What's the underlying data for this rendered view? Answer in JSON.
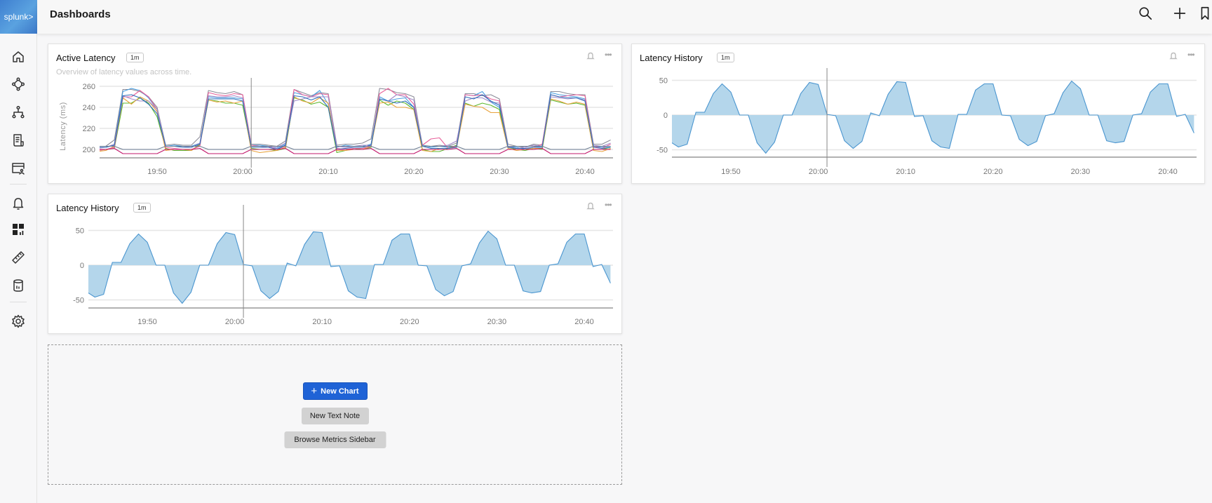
{
  "app": {
    "logo_text": "splunk>",
    "title": "Dashboards"
  },
  "sidebar": {
    "items": [
      {
        "icon": "home-icon"
      },
      {
        "icon": "service-map-icon"
      },
      {
        "icon": "hierarchy-icon"
      },
      {
        "icon": "logs-icon"
      },
      {
        "icon": "synthetics-icon"
      },
      {
        "icon": "alerts-bell-icon"
      },
      {
        "icon": "dashboards-icon"
      },
      {
        "icon": "ruler-icon"
      },
      {
        "icon": "database-icon"
      },
      {
        "icon": "settings-gear-icon"
      }
    ]
  },
  "header": {
    "icons": [
      "search-icon",
      "plus-icon",
      "bookmark-icon"
    ]
  },
  "cards": [
    {
      "title": "Active Latency",
      "badge": "1m",
      "subtitle": "Overview of latency values across time."
    },
    {
      "title": "Latency History",
      "badge": "1m"
    },
    {
      "title": "Latency History",
      "badge": "1m"
    }
  ],
  "empty_slot": {
    "new_chart": "New Chart",
    "new_text_note": "New Text Note",
    "browse_metrics": "Browse Metrics Sidebar"
  },
  "colors": {
    "accent": "#1f63d6",
    "area_fill": "#b4d6eb",
    "area_line": "#4a95cf"
  },
  "chart_data": [
    {
      "type": "line",
      "ylabel": "Latency (ms)",
      "yticks": [
        "200",
        "220",
        "240",
        "260"
      ],
      "xticks": [
        "19:50",
        "20:00",
        "20:10",
        "20:20",
        "20:30",
        "20:40"
      ],
      "ylim": [
        192,
        260
      ],
      "grid": true,
      "event_marker": "20:01",
      "x": [
        "19:43",
        "19:44",
        "19:45",
        "19:46",
        "19:47",
        "19:48",
        "19:49",
        "19:50",
        "19:51",
        "19:52",
        "19:53",
        "19:54",
        "19:55",
        "19:56",
        "19:57",
        "19:58",
        "19:59",
        "20:00",
        "20:01",
        "20:02",
        "20:03",
        "20:04",
        "20:05",
        "20:06",
        "20:07",
        "20:08",
        "20:09",
        "20:10",
        "20:11",
        "20:12",
        "20:13",
        "20:14",
        "20:15",
        "20:16",
        "20:17",
        "20:18",
        "20:19",
        "20:20",
        "20:21",
        "20:22",
        "20:23",
        "20:24",
        "20:25",
        "20:26",
        "20:27",
        "20:28",
        "20:29",
        "20:30",
        "20:31",
        "20:32",
        "20:33",
        "20:34",
        "20:35",
        "20:36",
        "20:37",
        "20:38",
        "20:39",
        "20:40",
        "20:41",
        "20:42",
        "20:43"
      ],
      "series": [
        {
          "color": "#8c8c99",
          "values": [
            203,
            203,
            209,
            257,
            257,
            255,
            250,
            240,
            204,
            205,
            204,
            204,
            212,
            256,
            254,
            253,
            255,
            252,
            205,
            205,
            204,
            203,
            208,
            257,
            254,
            251,
            254,
            253,
            204,
            205,
            205,
            206,
            210,
            258,
            257,
            254,
            253,
            250,
            204,
            203,
            204,
            203,
            206,
            253,
            253,
            251,
            252,
            248,
            205,
            203,
            202,
            205,
            204,
            255,
            255,
            253,
            252,
            252,
            205,
            205,
            209
          ]
        },
        {
          "color": "#4a9fe0",
          "values": [
            202,
            202,
            204,
            255,
            258,
            256,
            249,
            238,
            203,
            204,
            203,
            203,
            206,
            250,
            249,
            249,
            249,
            248,
            204,
            204,
            203,
            201,
            205,
            254,
            252,
            250,
            256,
            243,
            202,
            204,
            203,
            203,
            205,
            250,
            246,
            248,
            249,
            240,
            204,
            202,
            203,
            202,
            203,
            252,
            251,
            255,
            245,
            240,
            203,
            202,
            200,
            202,
            203,
            254,
            252,
            251,
            250,
            248,
            203,
            202,
            203
          ]
        },
        {
          "color": "#5cb82e",
          "values": [
            199,
            200,
            201,
            244,
            244,
            249,
            244,
            231,
            201,
            199,
            199,
            199,
            205,
            247,
            246,
            244,
            244,
            242,
            201,
            200,
            200,
            199,
            201,
            249,
            247,
            243,
            245,
            240,
            197,
            199,
            201,
            200,
            202,
            247,
            242,
            246,
            244,
            238,
            200,
            198,
            198,
            201,
            204,
            244,
            241,
            244,
            242,
            238,
            202,
            200,
            199,
            201,
            200,
            247,
            245,
            243,
            244,
            242,
            200,
            200,
            202
          ]
        },
        {
          "color": "#e8a33d",
          "values": [
            198,
            199,
            203,
            249,
            243,
            250,
            246,
            236,
            199,
            200,
            200,
            199,
            204,
            247,
            245,
            246,
            244,
            246,
            199,
            197,
            198,
            199,
            202,
            250,
            246,
            244,
            249,
            244,
            199,
            199,
            200,
            200,
            203,
            244,
            245,
            240,
            240,
            238,
            199,
            198,
            201,
            201,
            202,
            243,
            241,
            240,
            235,
            235,
            201,
            199,
            200,
            201,
            201,
            248,
            246,
            243,
            245,
            243,
            199,
            198,
            201
          ]
        },
        {
          "color": "#e8609a",
          "values": [
            199,
            200,
            202,
            250,
            250,
            256,
            250,
            238,
            202,
            201,
            200,
            200,
            203,
            254,
            252,
            251,
            253,
            252,
            204,
            203,
            203,
            200,
            203,
            257,
            252,
            250,
            253,
            252,
            201,
            200,
            201,
            201,
            203,
            253,
            258,
            252,
            252,
            243,
            204,
            210,
            211,
            201,
            203,
            252,
            251,
            252,
            248,
            246,
            202,
            201,
            201,
            202,
            205,
            252,
            250,
            251,
            252,
            251,
            203,
            201,
            205
          ]
        },
        {
          "color": "#a08ac8",
          "values": [
            201,
            202,
            205,
            251,
            248,
            246,
            246,
            238,
            203,
            203,
            203,
            202,
            206,
            251,
            250,
            250,
            251,
            249,
            203,
            203,
            202,
            202,
            206,
            246,
            248,
            250,
            250,
            250,
            203,
            202,
            203,
            204,
            204,
            248,
            246,
            252,
            250,
            247,
            203,
            203,
            203,
            204,
            208,
            246,
            249,
            249,
            245,
            244,
            203,
            201,
            202,
            204,
            203,
            250,
            249,
            248,
            249,
            247,
            204,
            203,
            206
          ]
        },
        {
          "color": "#2f6fba",
          "values": [
            202,
            202,
            204,
            251,
            252,
            249,
            243,
            234,
            203,
            203,
            202,
            202,
            205,
            248,
            248,
            248,
            248,
            246,
            202,
            202,
            202,
            200,
            204,
            251,
            250,
            247,
            250,
            240,
            200,
            201,
            202,
            202,
            204,
            248,
            246,
            244,
            246,
            240,
            203,
            201,
            201,
            201,
            202,
            250,
            248,
            252,
            246,
            242,
            202,
            201,
            201,
            202,
            202,
            252,
            250,
            249,
            249,
            246,
            202,
            201,
            202
          ]
        },
        {
          "color": "#6f7f95",
          "values": [
            203,
            203,
            203,
            200,
            200,
            200,
            200,
            200,
            203,
            203,
            203,
            203,
            203,
            200,
            200,
            200,
            200,
            200,
            203,
            203,
            203,
            203,
            203,
            200,
            200,
            200,
            200,
            200,
            203,
            203,
            203,
            203,
            203,
            200,
            200,
            200,
            200,
            200,
            203,
            203,
            203,
            203,
            203,
            200,
            200,
            200,
            200,
            200,
            203,
            203,
            203,
            203,
            203,
            200,
            200,
            200,
            200,
            200,
            203,
            203,
            203
          ]
        },
        {
          "color": "#c2186b",
          "values": [
            200,
            200,
            201,
            196,
            196,
            196,
            196,
            196,
            200,
            200,
            200,
            200,
            201,
            196,
            196,
            196,
            196,
            196,
            200,
            200,
            200,
            200,
            201,
            196,
            196,
            196,
            196,
            196,
            200,
            200,
            200,
            200,
            201,
            196,
            196,
            196,
            196,
            196,
            200,
            200,
            200,
            200,
            201,
            196,
            196,
            196,
            196,
            196,
            200,
            200,
            200,
            200,
            201,
            196,
            196,
            196,
            196,
            196,
            200,
            200,
            200
          ]
        }
      ]
    },
    {
      "type": "area",
      "yticks": [
        "50",
        "0",
        "-50"
      ],
      "xticks": [
        "19:50",
        "20:00",
        "20:10",
        "20:20",
        "20:30",
        "20:40"
      ],
      "ylim": [
        -62,
        50
      ],
      "grid": true,
      "event_marker": "20:01",
      "x": [
        "19:43",
        "19:44",
        "19:45",
        "19:46",
        "19:47",
        "19:48",
        "19:49",
        "19:50",
        "19:51",
        "19:52",
        "19:53",
        "19:54",
        "19:55",
        "19:56",
        "19:57",
        "19:58",
        "19:59",
        "20:00",
        "20:01",
        "20:02",
        "20:03",
        "20:04",
        "20:05",
        "20:06",
        "20:07",
        "20:08",
        "20:09",
        "20:10",
        "20:11",
        "20:12",
        "20:13",
        "20:14",
        "20:15",
        "20:16",
        "20:17",
        "20:18",
        "20:19",
        "20:20",
        "20:21",
        "20:22",
        "20:23",
        "20:24",
        "20:25",
        "20:26",
        "20:27",
        "20:28",
        "20:29",
        "20:30",
        "20:31",
        "20:32",
        "20:33",
        "20:34",
        "20:35",
        "20:36",
        "20:37",
        "20:38",
        "20:39",
        "20:40",
        "20:41",
        "20:42",
        "20:43"
      ],
      "values": [
        -38,
        -46,
        -42,
        4,
        4,
        31,
        45,
        33,
        0,
        0,
        -40,
        -55,
        -39,
        0,
        0,
        31,
        47,
        44,
        1,
        -1,
        -37,
        -48,
        -38,
        3,
        -1,
        30,
        48,
        47,
        -2,
        -1,
        -37,
        -46,
        -48,
        1,
        1,
        36,
        45,
        45,
        0,
        -1,
        -35,
        -44,
        -38,
        -1,
        2,
        32,
        49,
        38,
        0,
        0,
        -37,
        -40,
        -38,
        0,
        2,
        33,
        45,
        45,
        -2,
        1,
        -26
      ]
    },
    {
      "type": "area",
      "yticks": [
        "50",
        "0",
        "-50"
      ],
      "xticks": [
        "19:50",
        "20:00",
        "20:10",
        "20:20",
        "20:30",
        "20:40"
      ],
      "ylim": [
        -62,
        50
      ],
      "grid": true,
      "event_marker": "20:01",
      "x": [
        "19:43",
        "19:44",
        "19:45",
        "19:46",
        "19:47",
        "19:48",
        "19:49",
        "19:50",
        "19:51",
        "19:52",
        "19:53",
        "19:54",
        "19:55",
        "19:56",
        "19:57",
        "19:58",
        "19:59",
        "20:00",
        "20:01",
        "20:02",
        "20:03",
        "20:04",
        "20:05",
        "20:06",
        "20:07",
        "20:08",
        "20:09",
        "20:10",
        "20:11",
        "20:12",
        "20:13",
        "20:14",
        "20:15",
        "20:16",
        "20:17",
        "20:18",
        "20:19",
        "20:20",
        "20:21",
        "20:22",
        "20:23",
        "20:24",
        "20:25",
        "20:26",
        "20:27",
        "20:28",
        "20:29",
        "20:30",
        "20:31",
        "20:32",
        "20:33",
        "20:34",
        "20:35",
        "20:36",
        "20:37",
        "20:38",
        "20:39",
        "20:40",
        "20:41",
        "20:42",
        "20:43"
      ],
      "values": [
        -38,
        -46,
        -42,
        4,
        4,
        31,
        45,
        33,
        0,
        0,
        -40,
        -55,
        -39,
        0,
        0,
        31,
        47,
        44,
        1,
        -1,
        -37,
        -48,
        -38,
        3,
        -1,
        30,
        48,
        47,
        -2,
        -1,
        -37,
        -46,
        -48,
        1,
        1,
        36,
        45,
        45,
        0,
        -1,
        -35,
        -44,
        -38,
        -1,
        2,
        32,
        49,
        38,
        0,
        0,
        -37,
        -40,
        -38,
        0,
        2,
        33,
        45,
        45,
        -2,
        1,
        -26
      ]
    }
  ]
}
